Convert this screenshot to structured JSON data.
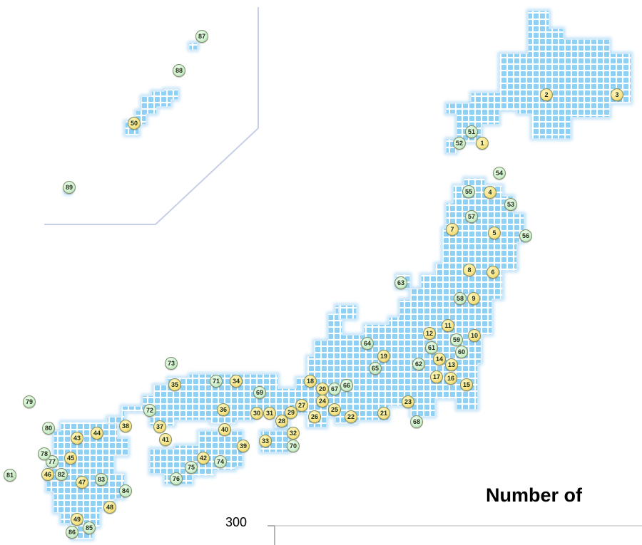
{
  "chart_title": "Number of",
  "axis_tick_label": "300",
  "colors": {
    "land": "#8fd0f5",
    "land_edge": "#b9def7",
    "grid_line": "#ffffff",
    "inset_border": "#c7cfe8",
    "marker_yellow": "#f7e27e",
    "marker_green": "#cdeecd"
  },
  "markers_primary": [
    "1",
    "2",
    "3",
    "4",
    "5",
    "6",
    "7",
    "8",
    "9",
    "10",
    "11",
    "12",
    "13",
    "14",
    "15",
    "16",
    "17",
    "18",
    "19",
    "20",
    "21",
    "22",
    "23",
    "24",
    "25",
    "26",
    "27",
    "28",
    "29",
    "30",
    "31",
    "32",
    "33",
    "34",
    "35",
    "36",
    "37",
    "38",
    "39",
    "40",
    "41",
    "42",
    "43",
    "44",
    "45",
    "46",
    "47",
    "48",
    "49",
    "50"
  ],
  "markers_secondary": [
    "51",
    "52",
    "53",
    "54",
    "55",
    "56",
    "57",
    "58",
    "59",
    "60",
    "61",
    "62",
    "63",
    "64",
    "65",
    "66",
    "67",
    "68",
    "69",
    "70",
    "71",
    "72",
    "73",
    "74",
    "75",
    "76",
    "77",
    "78",
    "79",
    "80",
    "81",
    "82",
    "83",
    "84",
    "85",
    "86",
    "87",
    "88",
    "89"
  ]
}
